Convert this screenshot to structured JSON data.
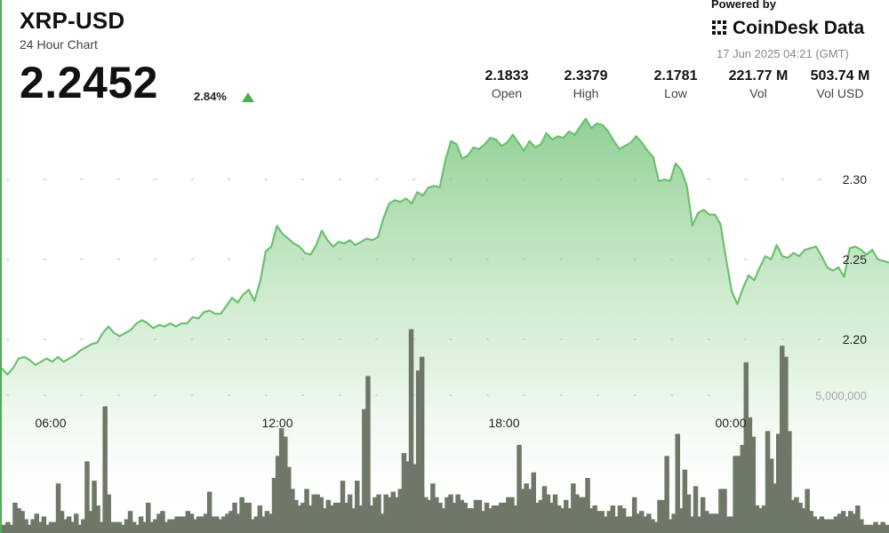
{
  "header": {
    "title": "XRP-USD",
    "subtitle": "24 Hour Chart",
    "price": "2.2452",
    "change": "2.84%"
  },
  "brand": {
    "powered_by": "Powered by",
    "name": "CoinDesk Data",
    "timestamp": "17 Jun 2025 04:21 (GMT)"
  },
  "stats": [
    {
      "value": "2.1833",
      "label": "Open"
    },
    {
      "value": "2.3379",
      "label": "High"
    },
    {
      "value": "2.1781",
      "label": "Low"
    },
    {
      "value": "221.77 M",
      "label": "Vol"
    },
    {
      "value": "503.74 M",
      "label": "Vol USD"
    }
  ],
  "colors": {
    "accent": "#4cb050",
    "price_line": "#6cc070",
    "volume_bar": "#6f7868"
  },
  "chart_data": {
    "type": "area",
    "x_ticks": [
      "06:00",
      "12:00",
      "18:00",
      "00:00"
    ],
    "y_ticks": [
      2.3,
      2.25,
      2.2
    ],
    "ylim": [
      2.17,
      2.345
    ],
    "volume_tick": "5,000,000",
    "volume_tick_value": 5000000,
    "volume_max": 11000000,
    "grid": "dotted",
    "series": [
      {
        "values": [
          2.182,
          2.178,
          2.182,
          2.188,
          2.189,
          2.187,
          2.184,
          2.186,
          2.188,
          2.186,
          2.189,
          2.186,
          2.188,
          2.19,
          2.193,
          2.195,
          2.197,
          2.198,
          2.204,
          2.208,
          2.204,
          2.202,
          2.204,
          2.206,
          2.21,
          2.212,
          2.21,
          2.207,
          2.209,
          2.208,
          2.21,
          2.208,
          2.21,
          2.21,
          2.214,
          2.213,
          2.217,
          2.218,
          2.216,
          2.216,
          2.221,
          2.226,
          2.223,
          2.228,
          2.231,
          2.224,
          2.236,
          2.255,
          2.258,
          2.271,
          2.266,
          2.263,
          2.26,
          2.258,
          2.254,
          2.253,
          2.259,
          2.268,
          2.262,
          2.258,
          2.261,
          2.26,
          2.262,
          2.259,
          2.261,
          2.263,
          2.262,
          2.264,
          2.276,
          2.285,
          2.287,
          2.286,
          2.288,
          2.285,
          2.292,
          2.29,
          2.295,
          2.296,
          2.295,
          2.312,
          2.324,
          2.322,
          2.313,
          2.315,
          2.32,
          2.319,
          2.322,
          2.326,
          2.325,
          2.321,
          2.323,
          2.328,
          2.323,
          2.318,
          2.324,
          2.32,
          2.322,
          2.329,
          2.325,
          2.327,
          2.326,
          2.33,
          2.328,
          2.333,
          2.338,
          2.332,
          2.335,
          2.334,
          2.33,
          2.324,
          2.319,
          2.321,
          2.323,
          2.327,
          2.323,
          2.318,
          2.314,
          2.299,
          2.3,
          2.299,
          2.31,
          2.306,
          2.296,
          2.271,
          2.279,
          2.281,
          2.278,
          2.278,
          2.272,
          2.25,
          2.23,
          2.222,
          2.232,
          2.24,
          2.237,
          2.245,
          2.252,
          2.25,
          2.259,
          2.252,
          2.251,
          2.254,
          2.252,
          2.256,
          2.257,
          2.258,
          2.252,
          2.245,
          2.243,
          2.245,
          2.239,
          2.257,
          2.258,
          2.256,
          2.253,
          2.256,
          2.25,
          2.249,
          2.248
        ]
      }
    ],
    "volume": [
      0.3,
      0.4,
      0.3,
      1.1,
      0.9,
      0.8,
      0.5,
      0.3,
      0.5,
      0.7,
      0.4,
      0.6,
      0.3,
      0.4,
      0.4,
      1.8,
      0.8,
      0.5,
      0.6,
      0.4,
      0.7,
      0.3,
      0.5,
      2.6,
      0.8,
      1.9,
      1.0,
      0.4,
      4.6,
      1.4,
      0.4,
      0.4,
      0.4,
      0.3,
      0.5,
      0.8,
      0.4,
      0.3,
      0.6,
      0.4,
      1.1,
      0.4,
      0.5,
      0.7,
      0.8,
      0.4,
      0.5,
      0.5,
      0.6,
      0.6,
      0.6,
      0.8,
      0.7,
      0.5,
      0.6,
      0.6,
      0.7,
      1.5,
      0.6,
      0.6,
      0.5,
      0.6,
      0.7,
      0.8,
      1.1,
      0.7,
      1.3,
      1.1,
      1.1,
      0.5,
      0.6,
      1.0,
      0.6,
      0.8,
      0.7,
      2.0,
      2.8,
      3.8,
      3.5,
      2.4,
      1.6,
      1.2,
      1.0,
      1.1,
      1.6,
      1.0,
      1.4,
      1.4,
      1.3,
      0.9,
      1.2,
      1.0,
      1.1,
      1.1,
      1.9,
      1.1,
      1.4,
      0.9,
      1.9,
      1.0,
      4.5,
      5.7,
      1.0,
      1.3,
      1.4,
      0.7,
      1.4,
      1.3,
      1.5,
      1.3,
      1.6,
      2.9,
      2.6,
      7.4,
      2.5,
      5.9,
      6.4,
      1.3,
      1.2,
      1.8,
      1.3,
      1.1,
      0.9,
      1.3,
      1.4,
      1.1,
      1.4,
      1.2,
      1.1,
      0.9,
      0.9,
      1.2,
      1.2,
      0.8,
      1.1,
      0.9,
      1.0,
      1.0,
      1.1,
      1.1,
      1.3,
      1.3,
      1.0,
      3.2,
      1.6,
      1.8,
      1.6,
      2.2,
      1.1,
      1.2,
      1.7,
      1.4,
      1.1,
      1.4,
      1.0,
      0.9,
      1.2,
      0.9,
      1.8,
      1.4,
      1.3,
      1.3,
      2.0,
      0.9,
      1.0,
      0.8,
      0.8,
      0.6,
      0.8,
      1.0,
      0.6,
      1.0,
      0.9,
      0.6,
      0.6,
      1.3,
      0.7,
      0.8,
      0.6,
      0.7,
      0.5,
      0.4,
      1.2,
      1.2,
      2.8,
      0.5,
      0.7,
      3.6,
      0.9,
      2.3,
      1.4,
      0.6,
      1.7,
      0.6,
      1.3,
      0.8,
      0.7,
      0.7,
      0.7,
      1.6,
      1.6,
      0.6,
      0.6,
      2.8,
      2.8,
      3.2,
      6.2,
      4.2,
      3.5,
      1.0,
      0.9,
      1.0,
      3.7,
      2.7,
      1.8,
      3.6,
      6.8,
      6.4,
      3.7,
      1.2,
      1.3,
      1.1,
      0.9,
      1.6,
      0.8,
      0.6,
      0.5,
      0.6,
      0.5,
      0.5,
      0.5,
      0.6,
      0.7,
      0.8,
      0.6,
      0.8,
      0.7,
      1.0,
      0.5,
      0.3,
      0.3,
      0.3,
      0.4,
      0.3,
      0.4,
      0.3
    ]
  }
}
